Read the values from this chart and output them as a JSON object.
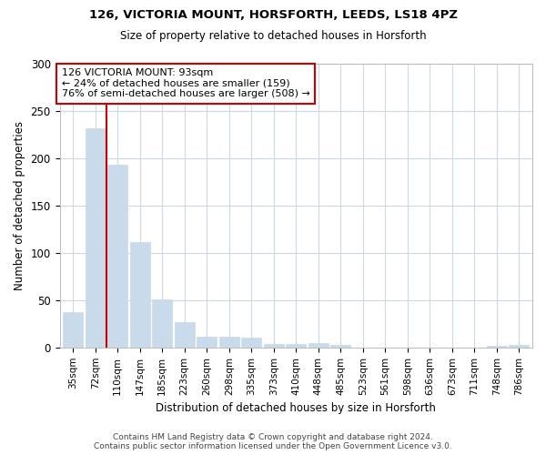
{
  "title1": "126, VICTORIA MOUNT, HORSFORTH, LEEDS, LS18 4PZ",
  "title2": "Size of property relative to detached houses in Horsforth",
  "xlabel": "Distribution of detached houses by size in Horsforth",
  "ylabel": "Number of detached properties",
  "categories": [
    "35sqm",
    "72sqm",
    "110sqm",
    "147sqm",
    "185sqm",
    "223sqm",
    "260sqm",
    "298sqm",
    "335sqm",
    "373sqm",
    "410sqm",
    "448sqm",
    "485sqm",
    "523sqm",
    "561sqm",
    "598sqm",
    "636sqm",
    "673sqm",
    "711sqm",
    "748sqm",
    "786sqm"
  ],
  "values": [
    37,
    232,
    193,
    111,
    51,
    27,
    11,
    11,
    10,
    4,
    4,
    5,
    3,
    0,
    0,
    0,
    0,
    0,
    0,
    2,
    3
  ],
  "bar_color": "#c9daea",
  "bar_edge_color": "#c9daea",
  "vline_x": 1.5,
  "vline_color": "#cc0000",
  "annotation_text": "126 VICTORIA MOUNT: 93sqm\n← 24% of detached houses are smaller (159)\n76% of semi-detached houses are larger (508) →",
  "annotation_box_color": "#ffffff",
  "annotation_box_edge": "#cc0000",
  "bg_color": "#ffffff",
  "grid_color": "#ccd8e4",
  "footer": "Contains HM Land Registry data © Crown copyright and database right 2024.\nContains public sector information licensed under the Open Government Licence v3.0.",
  "ylim": [
    0,
    300
  ],
  "yticks": [
    0,
    50,
    100,
    150,
    200,
    250,
    300
  ]
}
